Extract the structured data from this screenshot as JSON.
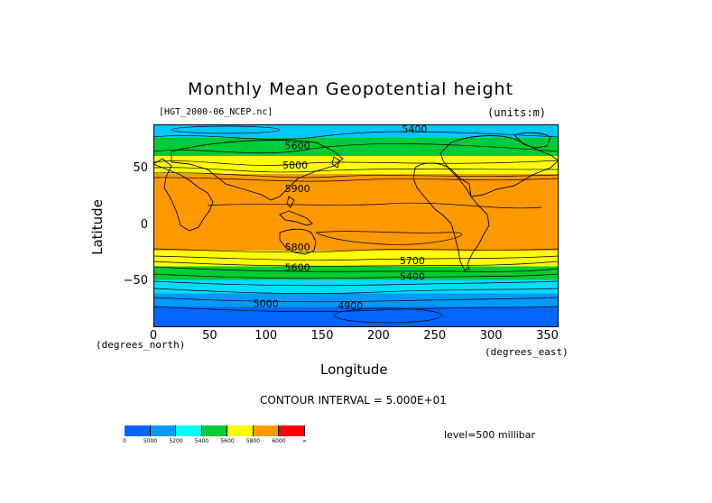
{
  "title": "Monthly Mean Geopotential height",
  "filename": "[HGT_2000-06_NCEP.nc]",
  "units": "(units:m)",
  "y_axis": {
    "title": "Latitude",
    "unit": "(degrees_north)",
    "ticks": [
      {
        "value": 50,
        "label": "50"
      },
      {
        "value": 0,
        "label": "0"
      },
      {
        "value": -50,
        "label": "−50"
      }
    ]
  },
  "x_axis": {
    "title": "Longitude",
    "unit": "(degrees_east)",
    "ticks": [
      {
        "value": 0,
        "label": "0"
      },
      {
        "value": 50,
        "label": "50"
      },
      {
        "value": 100,
        "label": "100"
      },
      {
        "value": 150,
        "label": "150"
      },
      {
        "value": 200,
        "label": "200"
      },
      {
        "value": 250,
        "label": "250"
      },
      {
        "value": 300,
        "label": "300"
      },
      {
        "value": 350,
        "label": "350"
      }
    ]
  },
  "map": {
    "lon_range": [
      0,
      360
    ],
    "lat_range": [
      -90,
      90
    ],
    "bands": [
      {
        "lat_top": 90,
        "lat_bottom": 78,
        "color": "#00c8ff"
      },
      {
        "lat_top": 78,
        "lat_bottom": 62,
        "color": "#00cc33"
      },
      {
        "lat_top": 62,
        "lat_bottom": 46,
        "color": "#ffff00"
      },
      {
        "lat_top": 46,
        "lat_bottom": -22,
        "color": "#ff9900"
      },
      {
        "lat_top": -22,
        "lat_bottom": -36,
        "color": "#ffff00"
      },
      {
        "lat_top": -36,
        "lat_bottom": -48,
        "color": "#00cc33"
      },
      {
        "lat_top": -48,
        "lat_bottom": -60,
        "color": "#00ddff"
      },
      {
        "lat_top": -60,
        "lat_bottom": -72,
        "color": "#0099ff"
      },
      {
        "lat_top": -72,
        "lat_bottom": -90,
        "color": "#0066ff"
      }
    ],
    "contour_labels": [
      {
        "text": "5400",
        "lon": 232,
        "lat": 83
      },
      {
        "text": "5600",
        "lon": 128,
        "lat": 68
      },
      {
        "text": "5800",
        "lon": 126,
        "lat": 51
      },
      {
        "text": "5900",
        "lon": 128,
        "lat": 30
      },
      {
        "text": "5800",
        "lon": 128,
        "lat": -22
      },
      {
        "text": "5600",
        "lon": 128,
        "lat": -40
      },
      {
        "text": "5700",
        "lon": 230,
        "lat": -34
      },
      {
        "text": "5400",
        "lon": 230,
        "lat": -48
      },
      {
        "text": "5000",
        "lon": 100,
        "lat": -72
      },
      {
        "text": "4900",
        "lon": 175,
        "lat": -74
      }
    ]
  },
  "contour_interval": "CONTOUR INTERVAL = 5.000E+01",
  "level": "level=500 millibar",
  "colorbar": {
    "colors": [
      "#0066ff",
      "#0099ff",
      "#00ffff",
      "#00cc33",
      "#ffff00",
      "#ff9900",
      "#ff0000"
    ],
    "labels": [
      "0",
      "5000",
      "5200",
      "5400",
      "5600",
      "5800",
      "6000",
      "∞"
    ]
  }
}
